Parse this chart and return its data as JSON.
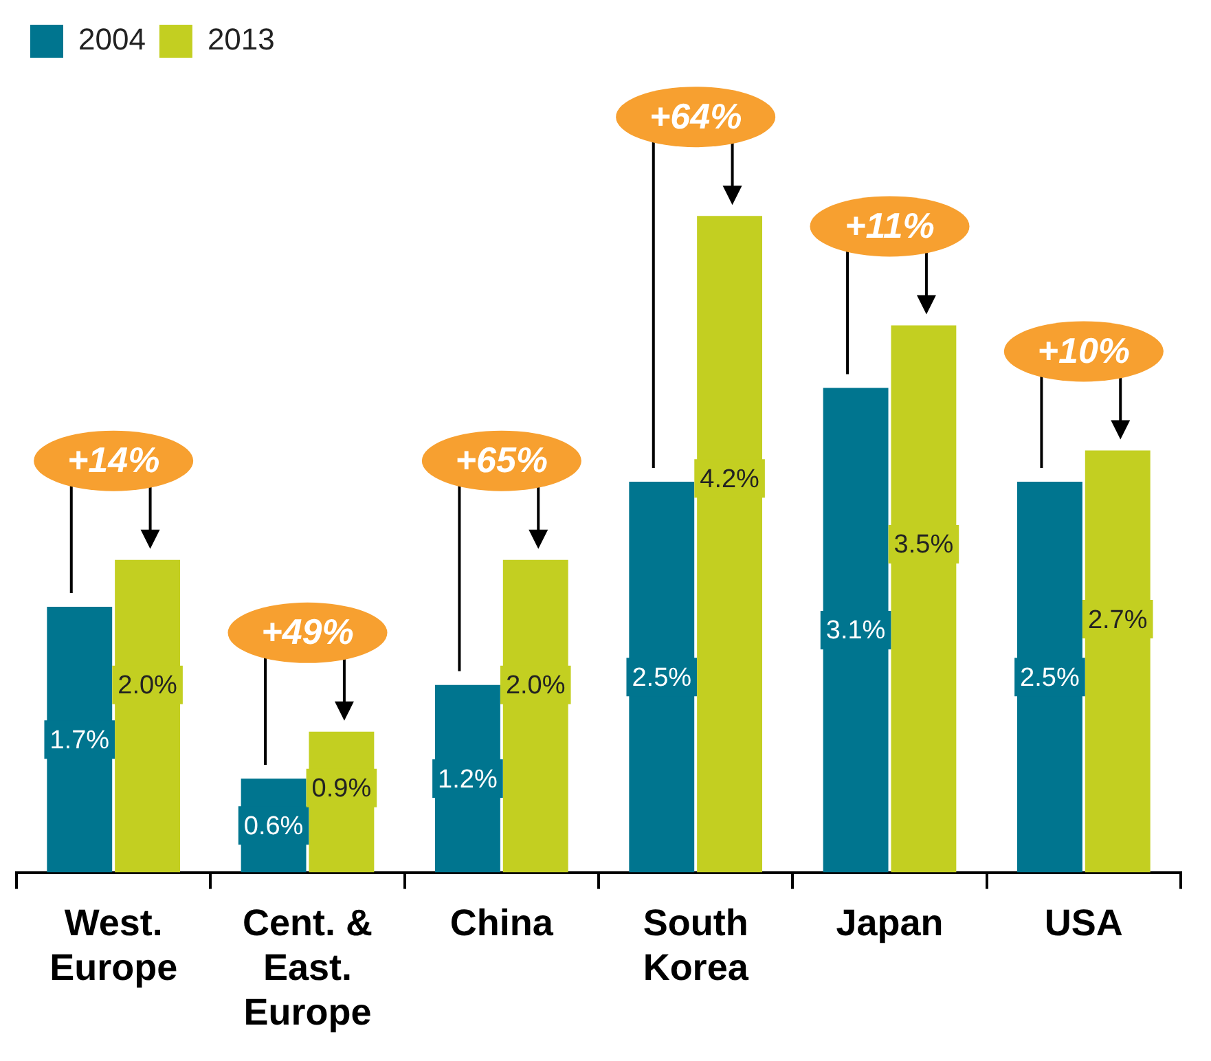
{
  "chart_data": {
    "type": "bar",
    "tick_labels": "x",
    "categories": [
      "West.\nEurope",
      "Cent. &\nEast.\nEurope",
      "China",
      "South\nKorea",
      "Japan",
      "USA"
    ],
    "series": [
      {
        "name": "2004",
        "color": "#00758f",
        "values": [
          1.7,
          0.6,
          1.2,
          2.5,
          3.1,
          2.5
        ],
        "value_labels": [
          "1.7%",
          "0.6%",
          "1.2%",
          "2.5%",
          "3.1%",
          "2.5%"
        ]
      },
      {
        "name": "2013",
        "color": "#c3cf21",
        "values": [
          2.0,
          0.9,
          2.0,
          4.2,
          3.5,
          2.7
        ],
        "value_labels": [
          "2.0%",
          "0.9%",
          "2.0%",
          "4.2%",
          "3.5%",
          "2.7%"
        ]
      }
    ],
    "annotations": [
      "+14%",
      "+49%",
      "+65%",
      "+64%",
      "+11%",
      "+10%"
    ],
    "legend": "top left",
    "grid": false
  }
}
